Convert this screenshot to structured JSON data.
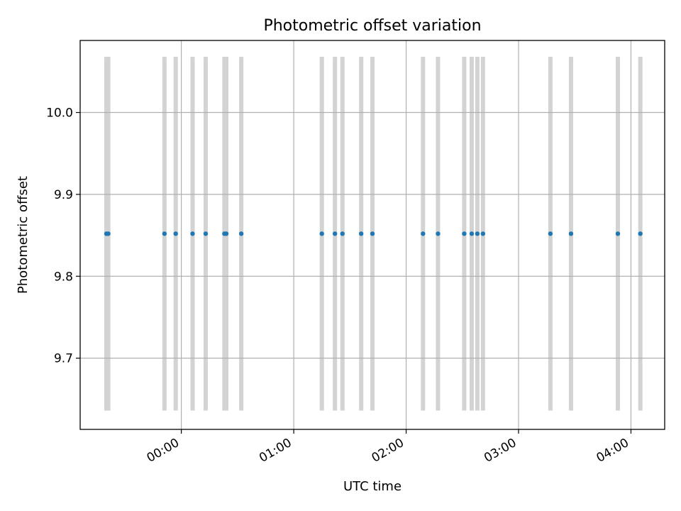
{
  "chart_data": {
    "type": "scatter",
    "title": "Photometric offset variation",
    "xlabel": "UTC time",
    "ylabel": "Photometric offset",
    "x_tick_labels": [
      "00:00",
      "01:00",
      "02:00",
      "03:00",
      "04:00"
    ],
    "y_tick_labels": [
      "9.7",
      "9.8",
      "9.9",
      "10.0"
    ],
    "y_ticks": [
      9.7,
      9.8,
      9.9,
      10.0
    ],
    "xlim": [
      "-00:54",
      "04:18"
    ],
    "ylim": [
      9.613,
      10.088
    ],
    "grid": true,
    "marker_color": "#1f77b4",
    "band_color": "#d3d3d3",
    "band_ylim": [
      9.636,
      10.068
    ],
    "series": [
      {
        "x": [
          "-00:40",
          "-00:39",
          "-00:09",
          "-00:03",
          "00:06",
          "00:13",
          "00:23",
          "00:24",
          "00:32",
          "01:15",
          "01:22",
          "01:26",
          "01:36",
          "01:42",
          "02:09",
          "02:17",
          "02:31",
          "02:35",
          "02:38",
          "02:41",
          "03:17",
          "03:28",
          "03:53",
          "04:05"
        ],
        "y": [
          9.852,
          9.852,
          9.852,
          9.852,
          9.852,
          9.852,
          9.852,
          9.852,
          9.852,
          9.852,
          9.852,
          9.852,
          9.852,
          9.852,
          9.852,
          9.852,
          9.852,
          9.852,
          9.852,
          9.852,
          9.852,
          9.852,
          9.852,
          9.852
        ]
      }
    ]
  }
}
